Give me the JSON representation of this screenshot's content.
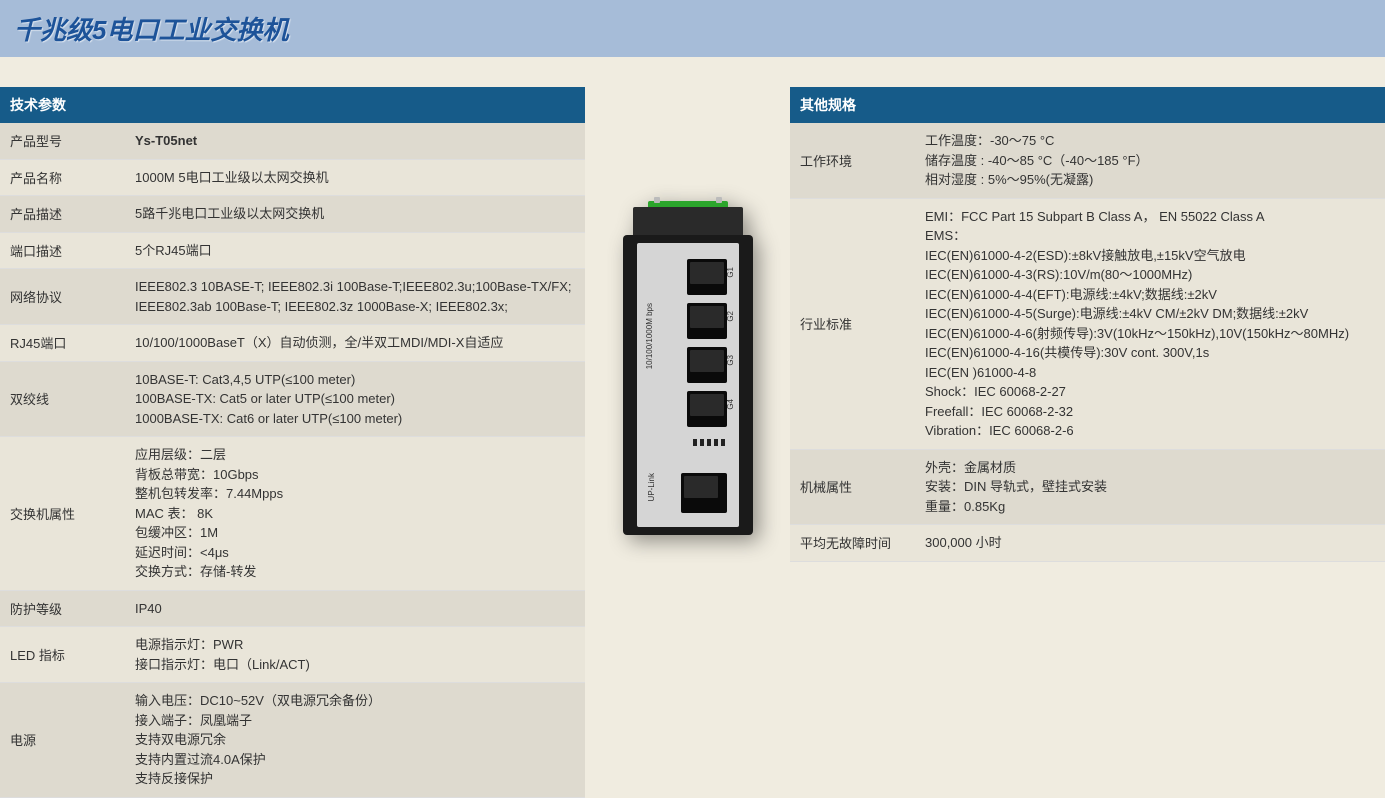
{
  "page": {
    "title": "千兆级5电口工业交换机",
    "background_color": "#f0ece0",
    "title_bar_bg": "#a6bcd8",
    "title_color": "#1d5399",
    "section_header_bg": "#165b89",
    "section_header_color": "#ffffff"
  },
  "left_section": {
    "header": "技术参数",
    "rows": [
      {
        "label": "产品型号",
        "value": "Ys-T05net",
        "bold": true
      },
      {
        "label": "产品名称",
        "value": "1000M  5电口工业级以太网交换机"
      },
      {
        "label": "产品描述",
        "value": "5路千兆电口工业级以太网交换机"
      },
      {
        "label": "端口描述",
        "value": "5个RJ45端口"
      },
      {
        "label": "网络协议",
        "value": "IEEE802.3 10BASE-T; IEEE802.3i 100Base-T;IEEE802.3u;100Base-TX/FX;\nIEEE802.3ab 100Base-T; IEEE802.3z 1000Base-X; IEEE802.3x;"
      },
      {
        "label": "RJ45端口",
        "value": "10/100/1000BaseT（X）自动侦测，全/半双工MDI/MDI-X自适应"
      },
      {
        "label": "双绞线",
        "value": "10BASE-T: Cat3,4,5 UTP(≤100 meter)\n100BASE-TX: Cat5 or later UTP(≤100 meter)\n1000BASE-TX: Cat6 or later UTP(≤100 meter)"
      },
      {
        "label": "交换机属性",
        "value": "应用层级：二层\n背板总带宽：10Gbps\n整机包转发率：7.44Mpps\nMAC 表： 8K\n包缓冲区：1M\n延迟时间：<4μs\n交换方式：存储-转发"
      },
      {
        "label": "防护等级",
        "value": "IP40"
      },
      {
        "label": "LED 指标",
        "value": "电源指示灯：PWR\n接口指示灯：电口（Link/ACT)"
      },
      {
        "label": "电源",
        "value": "输入电压：DC10~52V（双电源冗余备份）\n接入端子：凤凰端子\n支持双电源冗余\n支持内置过流4.0A保护\n支持反接保护"
      }
    ]
  },
  "right_section": {
    "header": "其他规格",
    "rows": [
      {
        "label": "工作环境",
        "value": "工作温度：-30～75 °C\n储存温度 : -40～85 °C（-40～185 °F）\n相对湿度 : 5%～95%(无凝露)"
      },
      {
        "label": "行业标准",
        "value": "EMI：FCC Part 15 Subpart B Class A， EN 55022 Class A\nEMS：\nIEC(EN)61000-4-2(ESD):±8kV接触放电,±15kV空气放电\nIEC(EN)61000-4-3(RS):10V/m(80～1000MHz)\nIEC(EN)61000-4-4(EFT):电源线:±4kV;数据线:±2kV\nIEC(EN)61000-4-5(Surge):电源线:±4kV CM/±2kV DM;数据线:±2kV\nIEC(EN)61000-4-6(射频传导):3V(10kHz～150kHz),10V(150kHz～80MHz)\nIEC(EN)61000-4-16(共模传导):30V cont. 300V,1s\nIEC(EN )61000-4-8\nShock：IEC 60068-2-27\nFreefall：IEC 60068-2-32\nVibration：IEC 60068-2-6"
      },
      {
        "label": "机械属性",
        "value": "外壳：金属材质\n安装：DIN 导轨式，壁挂式安装\n重量：0.85Kg"
      },
      {
        "label": "平均无故障时间",
        "value": "300,000 小时"
      }
    ]
  },
  "device": {
    "side_label_top": "10/100/1000M bps",
    "side_label_bottom": "UP-Link",
    "port_labels": [
      "G1",
      "G2",
      "G3",
      "G4"
    ]
  }
}
